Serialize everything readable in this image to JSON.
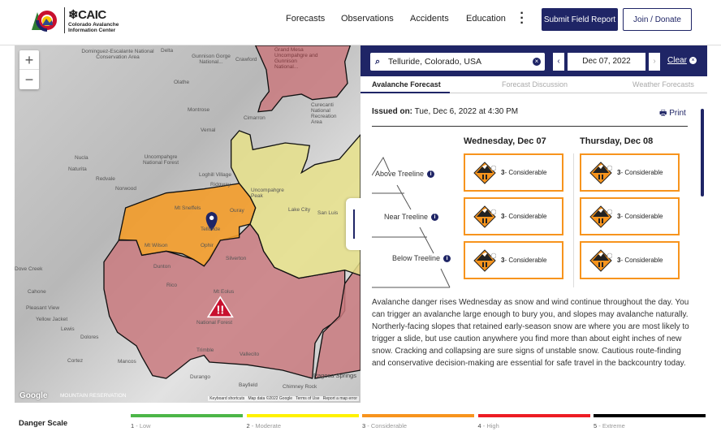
{
  "header": {
    "logo": {
      "brand": "CAIC",
      "subtitle_line1": "Colorado Avalanche",
      "subtitle_line2": "Information Center"
    },
    "nav": [
      "Forecasts",
      "Observations",
      "Accidents",
      "Education"
    ],
    "more_icon": "kebab-icon",
    "submit_label": "Submit Field Report",
    "join_label": "Join / Donate"
  },
  "map": {
    "zoom_in": "+",
    "zoom_out": "−",
    "labels": [
      "Dominguez-Escalante National Conservation Area",
      "Delta",
      "Gunnison Gorge National...",
      "Crawford",
      "Grand Mesa Uncompahgre and Gunnison National...",
      "Olathe",
      "Montrose",
      "Cimarron",
      "Curecanti National Recreation Area",
      "Vernal",
      "Nucla",
      "Naturita",
      "Uncompahgre National Forest",
      "Redvale",
      "Norwood",
      "Loghill Village",
      "Ridgway",
      "Uncompahgre Peak",
      "Mt Sneffels",
      "Ouray",
      "Telluride",
      "Lake City",
      "San Luis",
      "Mt Wilson",
      "Ophir",
      "Silverton",
      "Dunton",
      "Rico",
      "Mt Eolus",
      "National Forest",
      "Cahone",
      "Pleasant View",
      "Yellow Jacket",
      "Lewis",
      "Dolores",
      "Cortez",
      "Mancos",
      "Trimble",
      "Vallecito",
      "Durango",
      "Bayfield",
      "Pagosa Springs",
      "Chimney Rock",
      "Dove Creek",
      "MOUNTAIN RESERVATION"
    ],
    "google": "Google",
    "attribution": [
      "Keyboard shortcuts",
      "Map data ©2022 Google",
      "Terms of Use",
      "Report a map error"
    ],
    "colors": {
      "considerable": "#f39c2a",
      "high": "#c97a7f",
      "moderate": "#e6e08a"
    }
  },
  "panel": {
    "search_value": "Telluride, Colorado, USA",
    "date": "Dec 07, 2022",
    "prev": "‹",
    "next": "›",
    "clear": "Clear",
    "tabs": [
      "Avalanche Forecast",
      "Forecast Discussion",
      "Weather Forecasts"
    ],
    "issued_label": "Issued on:",
    "issued_value": " Tue, Dec 6, 2022 at 4:30 PM",
    "print": "Print",
    "days": [
      "Wednesday, Dec 07",
      "Thursday, Dec 08"
    ],
    "elevations": [
      "Above Treeline",
      "Near Treeline",
      "Below Treeline"
    ],
    "ratings": [
      [
        {
          "num": "3",
          "label": "- Considerable"
        },
        {
          "num": "3",
          "label": "- Considerable"
        }
      ],
      [
        {
          "num": "3",
          "label": "- Considerable"
        },
        {
          "num": "3",
          "label": "- Considerable"
        }
      ],
      [
        {
          "num": "3",
          "label": "- Considerable"
        },
        {
          "num": "3",
          "label": "- Considerable"
        }
      ]
    ],
    "summary": "Avalanche danger rises Wednesday as snow and wind continue throughout the day. You can trigger an avalanche large enough to bury you, and slopes may avalanche naturally. Northerly-facing slopes that retained early-season snow are where you are most likely to trigger a slide, but use caution anywhere you find more than about eight inches of new snow. Cracking and collapsing are sure signs of unstable snow. Cautious route-finding and conservative decision-making are essential for safe travel in the backcountry today."
  },
  "danger_scale": {
    "title": "Danger Scale",
    "levels": [
      {
        "num": "1",
        "label": " - Low",
        "color": "#4cb648"
      },
      {
        "num": "2",
        "label": " - Moderate",
        "color": "#fff200"
      },
      {
        "num": "3",
        "label": " - Considerable",
        "color": "#f7941d"
      },
      {
        "num": "4",
        "label": " - High",
        "color": "#ed1c24"
      },
      {
        "num": "5",
        "label": " - Extreme",
        "color": "#000000"
      }
    ]
  }
}
